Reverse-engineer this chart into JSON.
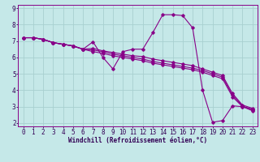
{
  "title": "",
  "xlabel": "Windchill (Refroidissement éolien,°C)",
  "ylabel": "",
  "bg_color": "#c5e8e8",
  "line_color": "#880088",
  "grid_color": "#a8d0d0",
  "xlim": [
    -0.5,
    23.5
  ],
  "ylim": [
    1.8,
    9.2
  ],
  "yticks": [
    2,
    3,
    4,
    5,
    6,
    7,
    8,
    9
  ],
  "xticks": [
    0,
    1,
    2,
    3,
    4,
    5,
    6,
    7,
    8,
    9,
    10,
    11,
    12,
    13,
    14,
    15,
    16,
    17,
    18,
    19,
    20,
    21,
    22,
    23
  ],
  "lines": [
    {
      "x": [
        0,
        1,
        2,
        3,
        4,
        5,
        6,
        7,
        8,
        9,
        10,
        11,
        12,
        13,
        14,
        15,
        16,
        17,
        18,
        19,
        20,
        21,
        22,
        23
      ],
      "y": [
        7.2,
        7.2,
        7.1,
        6.9,
        6.8,
        6.7,
        6.5,
        6.95,
        6.0,
        5.3,
        6.35,
        6.5,
        6.5,
        7.5,
        8.6,
        8.6,
        8.55,
        7.8,
        4.0,
        2.05,
        2.15,
        3.05,
        3.0,
        2.85
      ]
    },
    {
      "x": [
        0,
        1,
        2,
        3,
        4,
        5,
        6,
        7,
        8,
        9,
        10,
        11,
        12,
        13,
        14,
        15,
        16,
        17,
        18,
        19,
        20,
        21,
        22,
        23
      ],
      "y": [
        7.2,
        7.2,
        7.1,
        6.9,
        6.8,
        6.7,
        6.5,
        6.55,
        6.4,
        6.3,
        6.2,
        6.1,
        6.05,
        5.9,
        5.8,
        5.7,
        5.6,
        5.5,
        5.3,
        5.1,
        4.9,
        3.8,
        3.1,
        2.9
      ]
    },
    {
      "x": [
        0,
        1,
        2,
        3,
        4,
        5,
        6,
        7,
        8,
        9,
        10,
        11,
        12,
        13,
        14,
        15,
        16,
        17,
        18,
        19,
        20,
        21,
        22,
        23
      ],
      "y": [
        7.2,
        7.2,
        7.1,
        6.9,
        6.8,
        6.7,
        6.5,
        6.45,
        6.35,
        6.2,
        6.1,
        6.0,
        5.9,
        5.75,
        5.65,
        5.55,
        5.45,
        5.35,
        5.2,
        5.0,
        4.8,
        3.7,
        3.05,
        2.8
      ]
    },
    {
      "x": [
        0,
        1,
        2,
        3,
        4,
        5,
        6,
        7,
        8,
        9,
        10,
        11,
        12,
        13,
        14,
        15,
        16,
        17,
        18,
        19,
        20,
        21,
        22,
        23
      ],
      "y": [
        7.2,
        7.2,
        7.1,
        6.9,
        6.8,
        6.7,
        6.5,
        6.35,
        6.25,
        6.1,
        6.0,
        5.9,
        5.8,
        5.65,
        5.55,
        5.45,
        5.35,
        5.25,
        5.1,
        4.9,
        4.7,
        3.6,
        3.0,
        2.75
      ]
    }
  ],
  "marker": "D",
  "marker_size": 1.8,
  "line_width": 0.8,
  "tick_fontsize": 5.5,
  "label_fontsize": 5.5
}
